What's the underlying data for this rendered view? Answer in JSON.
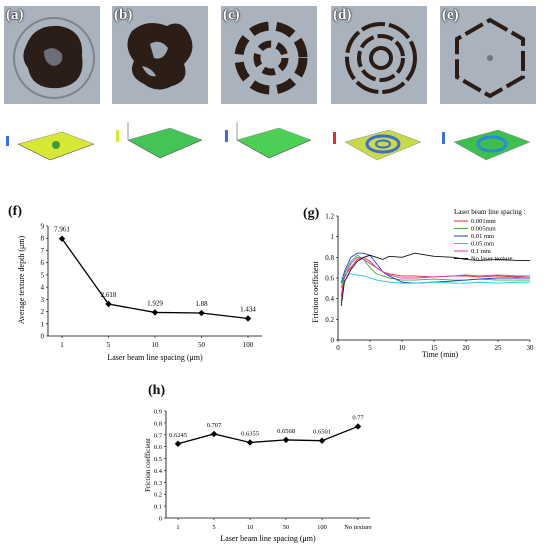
{
  "micrographs": [
    {
      "label": "(a)",
      "pattern": "blob"
    },
    {
      "label": "(b)",
      "pattern": "irregular"
    },
    {
      "label": "(c)",
      "pattern": "broken-rings"
    },
    {
      "label": "(d)",
      "pattern": "concentric-rings"
    },
    {
      "label": "(e)",
      "pattern": "hexagon-ring"
    }
  ],
  "profile_colors": [
    "#d8e636",
    "#44c457",
    "#4bcf55",
    "#c8d94a",
    "#3cbf4e"
  ],
  "chart_data": [
    {
      "panel": "(f)",
      "type": "line",
      "xlabel": "Laser beam line spacing  (μm)",
      "ylabel": "Average texture depth (μm)",
      "categories": [
        "1",
        "5",
        "10",
        "50",
        "100"
      ],
      "values": [
        7.961,
        2.618,
        1.929,
        1.88,
        1.434
      ],
      "data_labels": [
        "7.961",
        "2.618",
        "1.929",
        "1.88",
        "1.434"
      ],
      "ylim": [
        0,
        9
      ],
      "yticks": [
        "0",
        "1",
        "2",
        "3",
        "4",
        "5",
        "6",
        "7",
        "8",
        "9"
      ],
      "marker": "diamond",
      "color": "#000000"
    },
    {
      "panel": "(g)",
      "type": "line",
      "xlabel": "Time  (min)",
      "ylabel": "Friction coefficient",
      "xlim": [
        0,
        30
      ],
      "ylim": [
        0,
        1.2
      ],
      "xticks": [
        "0",
        "5",
        "10",
        "15",
        "20",
        "25",
        "30"
      ],
      "yticks": [
        "0",
        "0.2",
        "0.4",
        "0.6",
        "0.8",
        "1",
        "1.2"
      ],
      "legend_title": "Laser beam line spacing :",
      "legend_position": "top-right",
      "series": [
        {
          "name": "0.001mm",
          "color": "#e8262a",
          "x": [
            0.5,
            1,
            2,
            3,
            4,
            5,
            6,
            7,
            8,
            10,
            12,
            15,
            18,
            20,
            22,
            25,
            28,
            30
          ],
          "y": [
            0.42,
            0.62,
            0.7,
            0.78,
            0.8,
            0.76,
            0.7,
            0.66,
            0.64,
            0.62,
            0.62,
            0.61,
            0.62,
            0.62,
            0.61,
            0.62,
            0.61,
            0.62
          ]
        },
        {
          "name": "0.005mm",
          "color": "#2eb82e",
          "x": [
            0.5,
            1,
            2,
            3,
            4,
            5,
            6,
            7,
            8,
            10,
            12,
            15,
            18,
            20,
            22,
            25,
            28,
            30
          ],
          "y": [
            0.5,
            0.64,
            0.76,
            0.82,
            0.78,
            0.7,
            0.64,
            0.62,
            0.6,
            0.58,
            0.58,
            0.59,
            0.58,
            0.58,
            0.59,
            0.58,
            0.58,
            0.58
          ]
        },
        {
          "name": "0.01 mm",
          "color": "#1e3fd0",
          "x": [
            0.5,
            1,
            2,
            3,
            4,
            5,
            6,
            7,
            8,
            10,
            12,
            15,
            18,
            20,
            22,
            25,
            28,
            30
          ],
          "y": [
            0.55,
            0.66,
            0.8,
            0.84,
            0.84,
            0.82,
            0.74,
            0.66,
            0.62,
            0.56,
            0.55,
            0.56,
            0.57,
            0.58,
            0.59,
            0.6,
            0.6,
            0.6
          ]
        },
        {
          "name": "0.05 mm",
          "color": "#22c3e6",
          "x": [
            0.5,
            1,
            2,
            3,
            4,
            5,
            6,
            7,
            8,
            10,
            12,
            15,
            18,
            20,
            22,
            25,
            28,
            30
          ],
          "y": [
            0.6,
            0.62,
            0.64,
            0.63,
            0.62,
            0.6,
            0.58,
            0.57,
            0.56,
            0.55,
            0.55,
            0.56,
            0.55,
            0.55,
            0.56,
            0.55,
            0.56,
            0.56
          ]
        },
        {
          "name": "0.1  mm",
          "color": "#d637c8",
          "x": [
            0.5,
            1,
            2,
            3,
            4,
            5,
            6,
            7,
            8,
            10,
            12,
            15,
            18,
            20,
            22,
            25,
            28,
            30
          ],
          "y": [
            0.38,
            0.6,
            0.74,
            0.8,
            0.78,
            0.74,
            0.7,
            0.66,
            0.63,
            0.6,
            0.6,
            0.61,
            0.62,
            0.63,
            0.62,
            0.63,
            0.62,
            0.62
          ]
        },
        {
          "name": "No laser texture",
          "color": "#111111",
          "x": [
            0.5,
            1,
            2,
            3,
            4,
            5,
            6,
            7,
            8,
            10,
            12,
            15,
            18,
            20,
            22,
            25,
            28,
            30
          ],
          "y": [
            0.33,
            0.56,
            0.68,
            0.76,
            0.8,
            0.82,
            0.8,
            0.78,
            0.81,
            0.8,
            0.84,
            0.81,
            0.8,
            0.78,
            0.77,
            0.78,
            0.77,
            0.77
          ]
        }
      ]
    },
    {
      "panel": "(h)",
      "type": "line",
      "xlabel": "Laser beam line spacing  (μm)",
      "ylabel": "Friction coefficient",
      "categories": [
        "1",
        "5",
        "10",
        "50",
        "100",
        "No texture"
      ],
      "values": [
        0.6245,
        0.707,
        0.6355,
        0.6568,
        0.6501,
        0.77
      ],
      "data_labels": [
        "0.6245",
        "0.707",
        "0.6355",
        "0.6568",
        "0.6501",
        "0.77"
      ],
      "ylim": [
        0,
        0.9
      ],
      "yticks": [
        "0",
        "0.1",
        "0.2",
        "0.3",
        "0.4",
        "0.5",
        "0.6",
        "0.7",
        "0.8",
        "0.9"
      ],
      "marker": "diamond",
      "color": "#000000"
    }
  ]
}
